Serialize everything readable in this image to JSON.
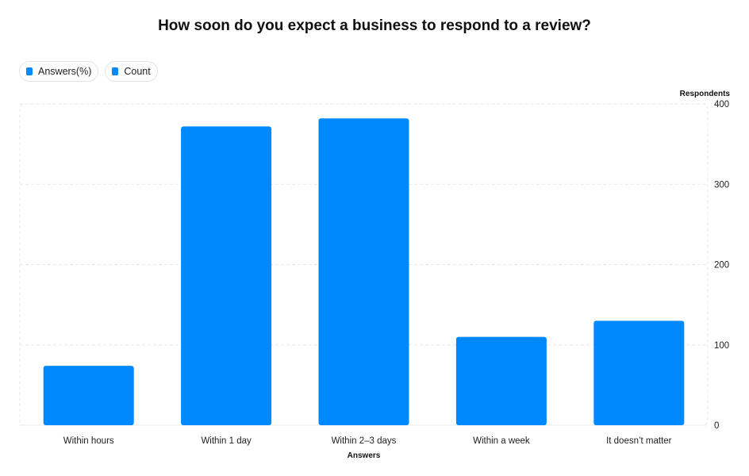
{
  "chart_data": {
    "type": "bar",
    "title": "How soon do you expect a business to respond to a review?",
    "xlabel": "Answers",
    "ylabel": "Respondents",
    "categories": [
      "Within hours",
      "Within 1 day",
      "Within 2–3 days",
      "Within a week",
      "It doesn’t matter"
    ],
    "series": [
      {
        "name": "Count",
        "values": [
          74,
          372,
          382,
          110,
          130
        ]
      }
    ],
    "ylim": [
      0,
      400
    ],
    "yticks": [
      0,
      100,
      200,
      300,
      400
    ],
    "grid": true,
    "legend_position": "top-left",
    "legend": [
      {
        "label": "Answers(%)",
        "color": "#0088ff"
      },
      {
        "label": "Count",
        "color": "#0088ff"
      }
    ],
    "bar_color": "#0088ff"
  }
}
